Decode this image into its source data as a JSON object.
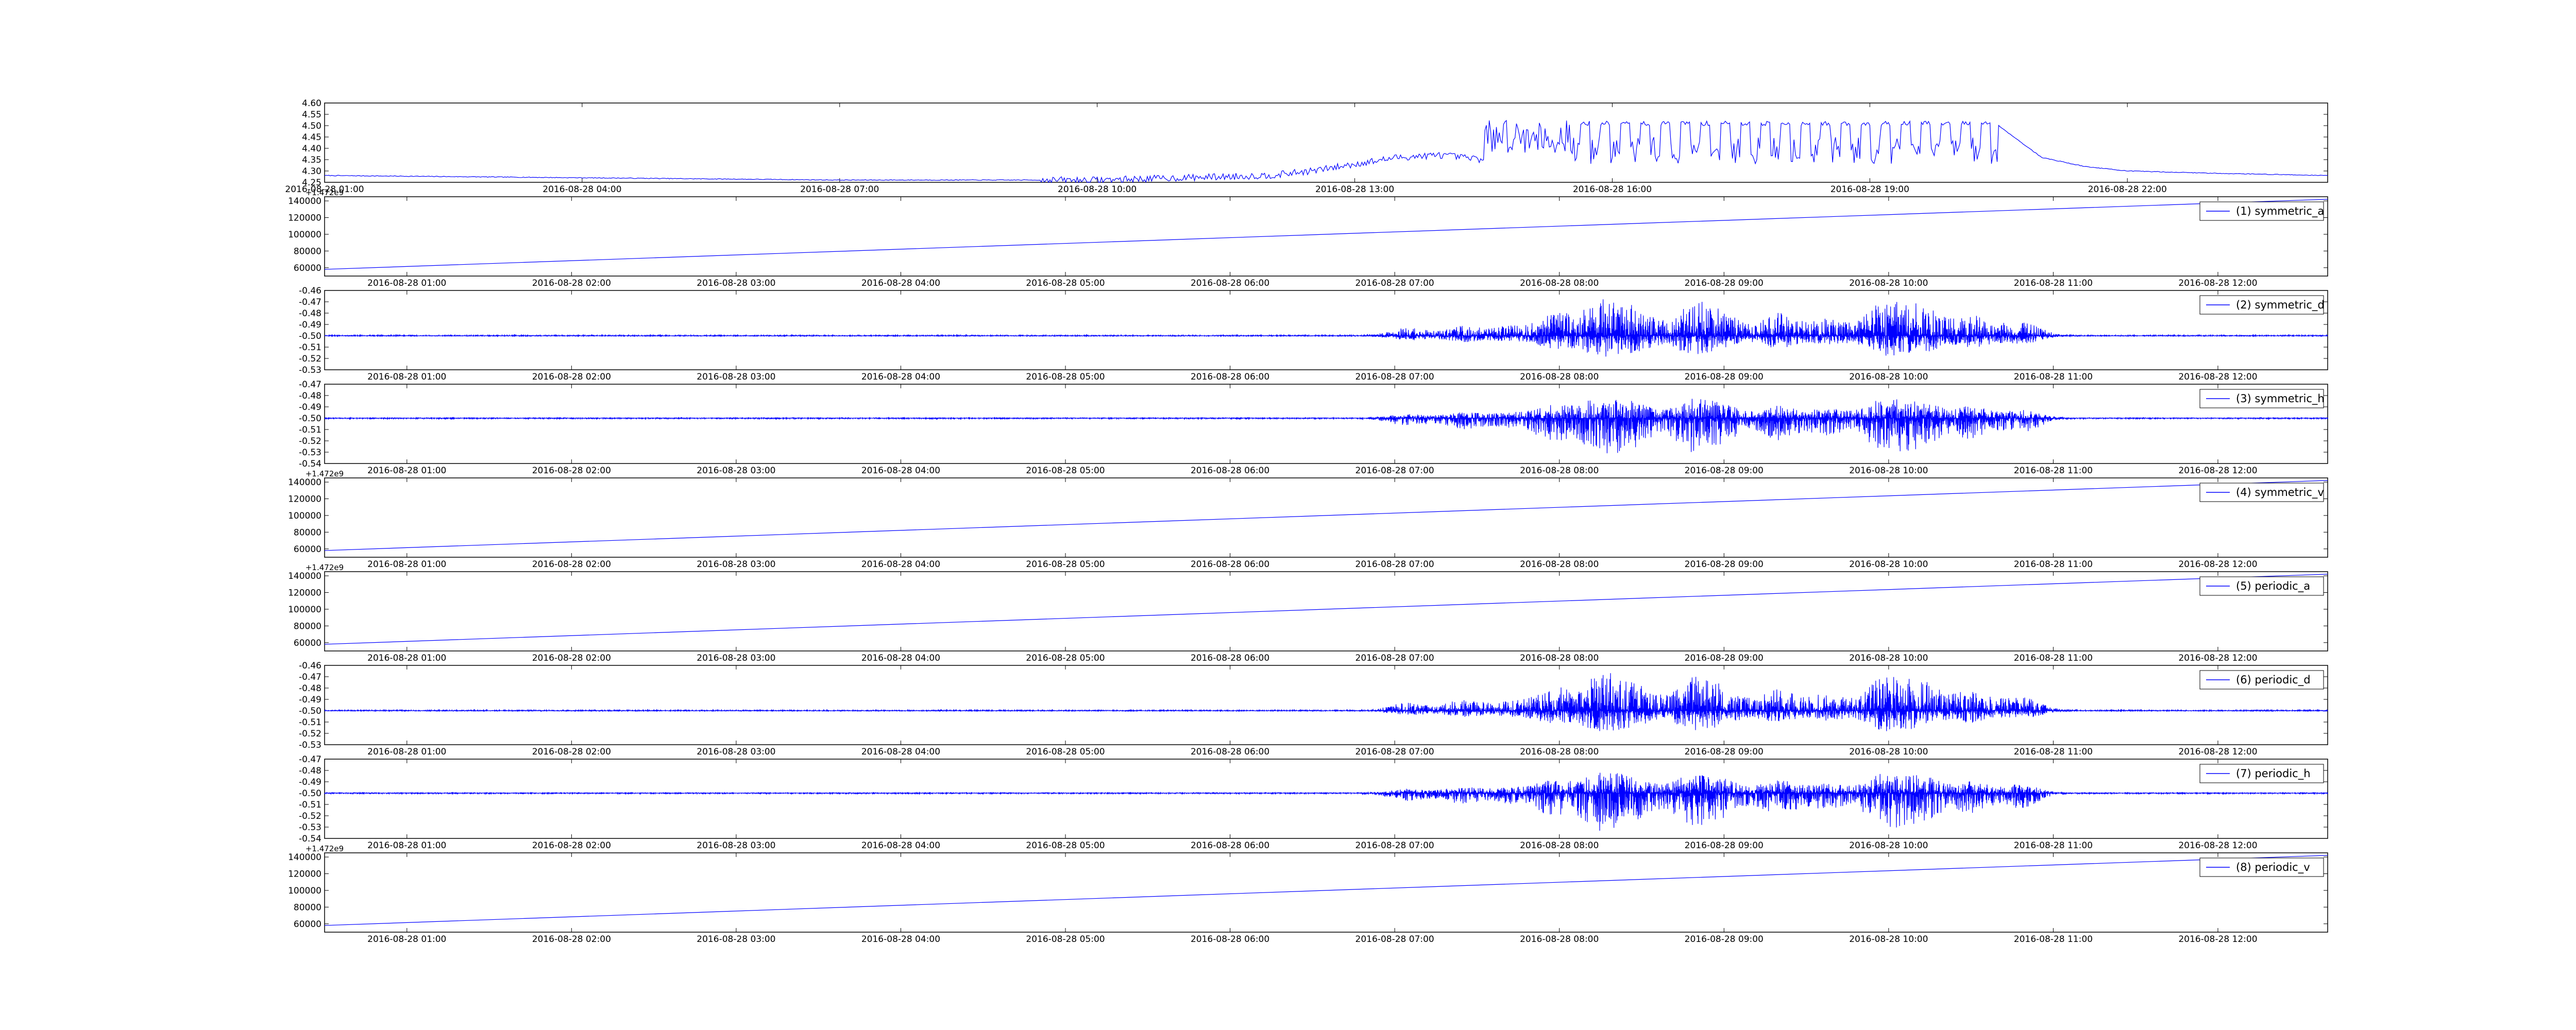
{
  "colors": {
    "line": "#0000ff",
    "background": "#ffffff",
    "axes": "#000000"
  },
  "chart_data": [
    {
      "type": "line",
      "legend": null,
      "grid": false,
      "ylim": [
        4.25,
        4.6
      ],
      "yticks": [
        "4.25",
        "4.30",
        "4.35",
        "4.40",
        "4.45",
        "4.50",
        "4.55",
        "4.60"
      ],
      "xlim": [
        "2016-08-28 01:00",
        "2016-08-29 00:20"
      ],
      "xticks": [
        "2016-08-28 01:00",
        "2016-08-28 04:00",
        "2016-08-28 07:00",
        "2016-08-28 10:00",
        "2016-08-28 13:00",
        "2016-08-28 16:00",
        "2016-08-28 19:00",
        "2016-08-28 22:00"
      ],
      "series": [
        {
          "x": [
            "2016-08-28 01:00",
            "2016-08-28 04:00",
            "2016-08-28 07:00",
            "2016-08-28 10:00",
            "2016-08-28 11:00",
            "2016-08-28 12:00",
            "2016-08-28 12:30",
            "2016-08-28 13:00",
            "2016-08-28 13:30",
            "2016-08-28 14:00",
            "2016-08-28 14:30",
            "2016-08-28 15:00",
            "2016-08-28 15:30",
            "2016-08-28 16:00",
            "2016-08-28 17:00",
            "2016-08-28 18:00",
            "2016-08-28 19:00",
            "2016-08-28 20:00",
            "2016-08-28 20:30",
            "2016-08-28 21:00",
            "2016-08-28 21:30",
            "2016-08-28 22:00",
            "2016-08-28 23:00",
            "2016-08-29 00:20"
          ],
          "values": [
            4.28,
            4.27,
            4.26,
            4.26,
            4.27,
            4.28,
            4.3,
            4.33,
            4.36,
            4.37,
            4.35,
            4.42,
            4.45,
            4.47,
            4.45,
            4.46,
            4.46,
            4.47,
            4.5,
            4.36,
            4.32,
            4.3,
            4.29,
            4.28
          ]
        }
      ]
    },
    {
      "type": "line",
      "grid": false,
      "legend": "(1) symmetric_a",
      "legend_position": "upper-right",
      "offset_text": "+1.472e9",
      "ylim": [
        50000,
        145000
      ],
      "yticks": [
        "60000",
        "80000",
        "100000",
        "120000",
        "140000"
      ],
      "xlim": [
        "2016-08-28 00:30",
        "2016-08-28 12:40"
      ],
      "xticks": [
        "2016-08-28 01:00",
        "2016-08-28 02:00",
        "2016-08-28 03:00",
        "2016-08-28 04:00",
        "2016-08-28 05:00",
        "2016-08-28 06:00",
        "2016-08-28 07:00",
        "2016-08-28 08:00",
        "2016-08-28 09:00",
        "2016-08-28 10:00",
        "2016-08-28 11:00",
        "2016-08-28 12:00"
      ],
      "series": [
        {
          "name": "(1) symmetric_a",
          "x": [
            "2016-08-28 00:30",
            "2016-08-28 12:40"
          ],
          "values": [
            58000,
            142000
          ]
        }
      ]
    },
    {
      "type": "line",
      "grid": false,
      "legend": "(2) symmetric_d",
      "legend_position": "upper-right",
      "ylim": [
        -0.53,
        -0.46
      ],
      "yticks": [
        "-0.53",
        "-0.52",
        "-0.51",
        "-0.50",
        "-0.49",
        "-0.48",
        "-0.47",
        "-0.46"
      ],
      "xlim": [
        "2016-08-28 00:30",
        "2016-08-28 12:40"
      ],
      "xticks": [
        "2016-08-28 01:00",
        "2016-08-28 02:00",
        "2016-08-28 03:00",
        "2016-08-28 04:00",
        "2016-08-28 05:00",
        "2016-08-28 06:00",
        "2016-08-28 07:00",
        "2016-08-28 08:00",
        "2016-08-28 09:00",
        "2016-08-28 10:00",
        "2016-08-28 11:00",
        "2016-08-28 12:00"
      ],
      "series": [
        {
          "name": "(2) symmetric_d",
          "baseline": -0.5,
          "min": -0.52,
          "max": -0.465
        }
      ]
    },
    {
      "type": "line",
      "grid": false,
      "legend": "(3) symmetric_h",
      "legend_position": "upper-right",
      "ylim": [
        -0.54,
        -0.47
      ],
      "yticks": [
        "-0.54",
        "-0.53",
        "-0.52",
        "-0.51",
        "-0.50",
        "-0.49",
        "-0.48",
        "-0.47"
      ],
      "xlim": [
        "2016-08-28 00:30",
        "2016-08-28 12:40"
      ],
      "xticks": [
        "2016-08-28 01:00",
        "2016-08-28 02:00",
        "2016-08-28 03:00",
        "2016-08-28 04:00",
        "2016-08-28 05:00",
        "2016-08-28 06:00",
        "2016-08-28 07:00",
        "2016-08-28 08:00",
        "2016-08-28 09:00",
        "2016-08-28 10:00",
        "2016-08-28 11:00",
        "2016-08-28 12:00"
      ],
      "series": [
        {
          "name": "(3) symmetric_h",
          "baseline": -0.5,
          "min": -0.535,
          "max": -0.48
        }
      ]
    },
    {
      "type": "line",
      "grid": false,
      "legend": "(4) symmetric_v",
      "legend_position": "upper-right",
      "offset_text": "+1.472e9",
      "ylim": [
        50000,
        145000
      ],
      "yticks": [
        "60000",
        "80000",
        "100000",
        "120000",
        "140000"
      ],
      "xlim": [
        "2016-08-28 00:30",
        "2016-08-28 12:40"
      ],
      "xticks": [
        "2016-08-28 01:00",
        "2016-08-28 02:00",
        "2016-08-28 03:00",
        "2016-08-28 04:00",
        "2016-08-28 05:00",
        "2016-08-28 06:00",
        "2016-08-28 07:00",
        "2016-08-28 08:00",
        "2016-08-28 09:00",
        "2016-08-28 10:00",
        "2016-08-28 11:00",
        "2016-08-28 12:00"
      ],
      "series": [
        {
          "name": "(4) symmetric_v",
          "x": [
            "2016-08-28 00:30",
            "2016-08-28 12:40"
          ],
          "values": [
            58000,
            142000
          ]
        }
      ]
    },
    {
      "type": "line",
      "grid": false,
      "legend": "(5) periodic_a",
      "legend_position": "upper-right",
      "offset_text": "+1.472e9",
      "ylim": [
        50000,
        145000
      ],
      "yticks": [
        "60000",
        "80000",
        "100000",
        "120000",
        "140000"
      ],
      "xlim": [
        "2016-08-28 00:30",
        "2016-08-28 12:40"
      ],
      "xticks": [
        "2016-08-28 01:00",
        "2016-08-28 02:00",
        "2016-08-28 03:00",
        "2016-08-28 04:00",
        "2016-08-28 05:00",
        "2016-08-28 06:00",
        "2016-08-28 07:00",
        "2016-08-28 08:00",
        "2016-08-28 09:00",
        "2016-08-28 10:00",
        "2016-08-28 11:00",
        "2016-08-28 12:00"
      ],
      "series": [
        {
          "name": "(5) periodic_a",
          "x": [
            "2016-08-28 00:30",
            "2016-08-28 12:40"
          ],
          "values": [
            58000,
            142000
          ]
        }
      ]
    },
    {
      "type": "line",
      "grid": false,
      "legend": "(6) periodic_d",
      "legend_position": "upper-right",
      "ylim": [
        -0.53,
        -0.46
      ],
      "yticks": [
        "-0.53",
        "-0.52",
        "-0.51",
        "-0.50",
        "-0.49",
        "-0.48",
        "-0.47",
        "-0.46"
      ],
      "xlim": [
        "2016-08-28 00:30",
        "2016-08-28 12:40"
      ],
      "xticks": [
        "2016-08-28 01:00",
        "2016-08-28 02:00",
        "2016-08-28 03:00",
        "2016-08-28 04:00",
        "2016-08-28 05:00",
        "2016-08-28 06:00",
        "2016-08-28 07:00",
        "2016-08-28 08:00",
        "2016-08-28 09:00",
        "2016-08-28 10:00",
        "2016-08-28 11:00",
        "2016-08-28 12:00"
      ],
      "series": [
        {
          "name": "(6) periodic_d",
          "baseline": -0.5,
          "min": -0.52,
          "max": -0.465
        }
      ]
    },
    {
      "type": "line",
      "grid": false,
      "legend": "(7) periodic_h",
      "legend_position": "upper-right",
      "ylim": [
        -0.54,
        -0.47
      ],
      "yticks": [
        "-0.54",
        "-0.53",
        "-0.52",
        "-0.51",
        "-0.50",
        "-0.49",
        "-0.48",
        "-0.47"
      ],
      "xlim": [
        "2016-08-28 00:30",
        "2016-08-28 12:40"
      ],
      "xticks": [
        "2016-08-28 01:00",
        "2016-08-28 02:00",
        "2016-08-28 03:00",
        "2016-08-28 04:00",
        "2016-08-28 05:00",
        "2016-08-28 06:00",
        "2016-08-28 07:00",
        "2016-08-28 08:00",
        "2016-08-28 09:00",
        "2016-08-28 10:00",
        "2016-08-28 11:00",
        "2016-08-28 12:00"
      ],
      "series": [
        {
          "name": "(7) periodic_h",
          "baseline": -0.5,
          "min": -0.535,
          "max": -0.48
        }
      ]
    },
    {
      "type": "line",
      "grid": false,
      "legend": "(8) periodic_v",
      "legend_position": "upper-right",
      "offset_text": "+1.472e9",
      "ylim": [
        50000,
        145000
      ],
      "yticks": [
        "60000",
        "80000",
        "100000",
        "120000",
        "140000"
      ],
      "xlim": [
        "2016-08-28 00:30",
        "2016-08-28 12:40"
      ],
      "xticks": [
        "2016-08-28 01:00",
        "2016-08-28 02:00",
        "2016-08-28 03:00",
        "2016-08-28 04:00",
        "2016-08-28 05:00",
        "2016-08-28 06:00",
        "2016-08-28 07:00",
        "2016-08-28 08:00",
        "2016-08-28 09:00",
        "2016-08-28 10:00",
        "2016-08-28 11:00",
        "2016-08-28 12:00"
      ],
      "series": [
        {
          "name": "(8) periodic_v",
          "x": [
            "2016-08-28 00:30",
            "2016-08-28 12:40"
          ],
          "values": [
            58000,
            142000
          ]
        }
      ]
    }
  ]
}
